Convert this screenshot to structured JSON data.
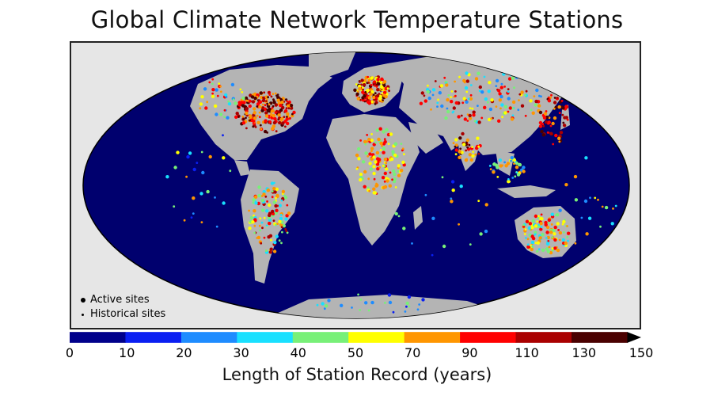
{
  "title": "Global Climate Network Temperature Stations",
  "legend": {
    "active": "Active sites",
    "historical": "Historical sites"
  },
  "colorbar": {
    "label": "Length of Station Record (years)",
    "ticks": [
      "0",
      "10",
      "20",
      "30",
      "40",
      "50",
      "70",
      "90",
      "110",
      "130",
      "150"
    ],
    "bins": [
      {
        "from": 0,
        "to": 10,
        "color": "#00008b"
      },
      {
        "from": 10,
        "to": 20,
        "color": "#0a1ff2"
      },
      {
        "from": 20,
        "to": 30,
        "color": "#1e8cff"
      },
      {
        "from": 30,
        "to": 40,
        "color": "#19e0ff"
      },
      {
        "from": 40,
        "to": 50,
        "color": "#78f078"
      },
      {
        "from": 50,
        "to": 70,
        "color": "#ffff00"
      },
      {
        "from": 70,
        "to": 90,
        "color": "#ff9600"
      },
      {
        "from": 90,
        "to": 110,
        "color": "#ff0000"
      },
      {
        "from": 110,
        "to": 130,
        "color": "#aa0000"
      },
      {
        "from": 130,
        "to": 150,
        "color": "#4a0000"
      }
    ],
    "max": 150
  },
  "colors": {
    "ocean": "#00006e",
    "land": "#b4b4b4",
    "frame_bg": "#e6e6e6"
  }
}
